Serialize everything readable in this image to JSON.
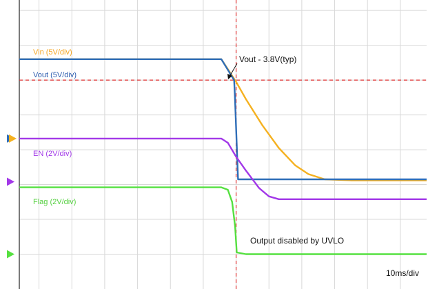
{
  "chart_data": {
    "type": "line",
    "title": "",
    "xlabel": "",
    "ylabel": "",
    "timebase": "10ms/div",
    "x_unit": "ms",
    "xlim": [
      -66,
      58
    ],
    "y_unit": "divisions",
    "ylim": [
      0,
      8.3
    ],
    "grid": true,
    "series": [
      {
        "name": "Vin (5V/div)",
        "color": "#f5b120",
        "values": [
          [
            -66,
            6.6
          ],
          [
            -4.5,
            6.6
          ],
          [
            0,
            5.95
          ],
          [
            3,
            5.45
          ],
          [
            8,
            4.7
          ],
          [
            13,
            4.05
          ],
          [
            18,
            3.55
          ],
          [
            22,
            3.3
          ],
          [
            27,
            3.15
          ],
          [
            35,
            3.12
          ],
          [
            58,
            3.12
          ]
        ]
      },
      {
        "name": "Vout (5V/div)",
        "color": "#2f6eb8",
        "values": [
          [
            -66,
            6.6
          ],
          [
            -4.5,
            6.6
          ],
          [
            -0.6,
            6.0
          ],
          [
            -0.4,
            5.6
          ],
          [
            0.6,
            3.15
          ],
          [
            58,
            3.15
          ]
        ]
      },
      {
        "name": "EN (2V/div)",
        "color": "#a238e8",
        "values": [
          [
            -66,
            4.32
          ],
          [
            -4.5,
            4.32
          ],
          [
            -2.5,
            4.2
          ],
          [
            0,
            3.8
          ],
          [
            3,
            3.4
          ],
          [
            7,
            2.9
          ],
          [
            10,
            2.66
          ],
          [
            13,
            2.58
          ],
          [
            58,
            2.58
          ]
        ]
      },
      {
        "name": "Flag (2V/div)",
        "color": "#55e040",
        "values": [
          [
            -66,
            2.92
          ],
          [
            -4.5,
            2.92
          ],
          [
            -2.5,
            2.85
          ],
          [
            -1.2,
            2.5
          ],
          [
            -0.3,
            1.8
          ],
          [
            0.2,
            1.05
          ],
          [
            3,
            1.0
          ],
          [
            20,
            1.0
          ],
          [
            58,
            1.0
          ]
        ]
      }
    ],
    "cursors": [
      {
        "axis": "x",
        "value": 0,
        "color": "#e03030"
      },
      {
        "axis": "y",
        "value": 6.0,
        "color": "#e03030"
      }
    ],
    "ground_markers": [
      {
        "level": 4.32,
        "color": "#2f6eb8"
      },
      {
        "level": 4.32,
        "color": "#f5b120"
      },
      {
        "level": 3.08,
        "color": "#a238e8"
      },
      {
        "level": 1.0,
        "color": "#55e040"
      }
    ],
    "annotations": [
      {
        "id": "vout_threshold",
        "text": "Vout - 3.8V(typ)"
      },
      {
        "id": "uvlo_note",
        "text": "Output disabled by UVLO"
      }
    ]
  },
  "labels": {
    "vin": "Vin (5V/div)",
    "vout": "Vout (5V/div)",
    "en": "EN (2V/div)",
    "flag": "Flag (2V/div)",
    "vout_threshold": "Vout - 3.8V(typ)",
    "uvlo_note": "Output disabled by UVLO",
    "timebase": "10ms/div"
  }
}
